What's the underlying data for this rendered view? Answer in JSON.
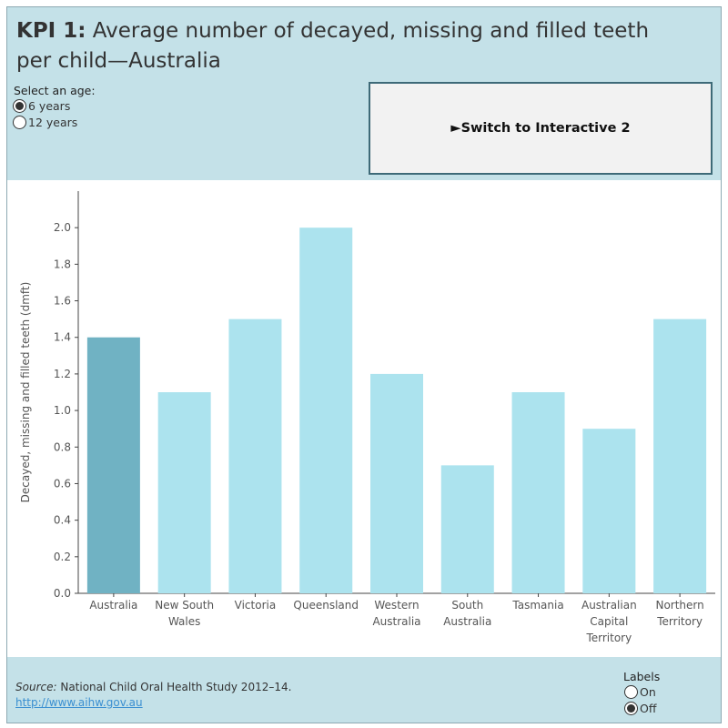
{
  "header": {
    "title_bold": "KPI 1:",
    "title_rest": " Average number of decayed, missing and filled teeth per child—Australia",
    "age_selector": {
      "label": "Select an age:",
      "options": [
        {
          "label": "6 years",
          "selected": true
        },
        {
          "label": "12 years",
          "selected": false
        }
      ]
    },
    "switch_button": "►Switch to Interactive 2"
  },
  "chart_data": {
    "type": "bar",
    "title": "",
    "xlabel": "",
    "ylabel": "Decayed, missing and filled teeth (dmft)",
    "ylim": [
      0,
      2.2
    ],
    "yticks": [
      "0.0",
      "0.2",
      "0.4",
      "0.6",
      "0.8",
      "1.0",
      "1.2",
      "1.4",
      "1.6",
      "1.8",
      "2.0"
    ],
    "categories": [
      [
        "Australia"
      ],
      [
        "New South",
        "Wales"
      ],
      [
        "Victoria"
      ],
      [
        "Queensland"
      ],
      [
        "Western",
        "Australia"
      ],
      [
        "South",
        "Australia"
      ],
      [
        "Tasmania"
      ],
      [
        "Australian",
        "Capital",
        "Territory"
      ],
      [
        "Northern",
        "Territory"
      ]
    ],
    "values": [
      1.4,
      1.1,
      1.5,
      2.0,
      1.2,
      0.7,
      1.1,
      0.9,
      1.5
    ],
    "highlight_index": 0,
    "colors": {
      "highlight": "#70b2c3",
      "default": "#ace3ee"
    },
    "grid": false
  },
  "footer": {
    "source_label": "Source:",
    "source_text": " National Child Oral Health Study 2012–14.",
    "link": "http://www.aihw.gov.au",
    "labels_toggle": {
      "title": "Labels",
      "options": [
        {
          "label": "On",
          "selected": false
        },
        {
          "label": "Off",
          "selected": true
        }
      ]
    }
  }
}
